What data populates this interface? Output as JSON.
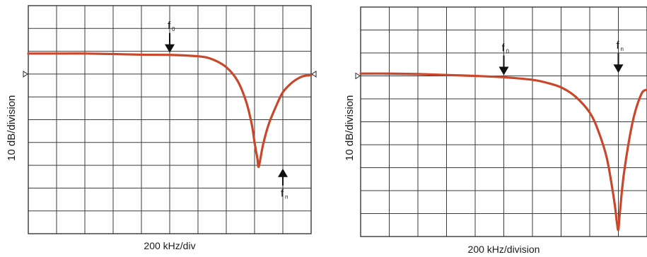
{
  "chart_data": [
    {
      "type": "line",
      "xlabel": "200 kHz/div",
      "ylabel": "10 dB/division",
      "x_divisions": 10,
      "y_divisions": 10,
      "xlim": [
        0,
        10
      ],
      "ylim": [
        -100,
        0
      ],
      "grid": true,
      "reference_markers": [
        "left",
        "right"
      ],
      "colors": {
        "trace": "#c9472b",
        "grid": "#3a3a3a"
      },
      "series": [
        {
          "x": [
            0,
            1,
            2,
            3,
            4,
            5,
            6,
            6.5,
            7,
            7.4,
            7.7,
            7.9,
            8.0,
            8.1,
            8.15,
            8.3,
            8.5,
            8.8,
            9.0,
            9.3,
            9.6,
            9.8,
            10
          ],
          "y": [
            -21,
            -21,
            -21,
            -21.2,
            -21.5,
            -21.6,
            -22.2,
            -23.5,
            -27,
            -33,
            -42,
            -52,
            -60,
            -67,
            -70.5,
            -61,
            -52,
            -43,
            -38,
            -34,
            -31.5,
            -30.7,
            -30.5
          ]
        }
      ],
      "markers": [
        {
          "symbol": "f",
          "sub": "0",
          "x": 5.0,
          "y": -21.6,
          "side": "above"
        },
        {
          "symbol": "f",
          "sub": "n",
          "x": 9.0,
          "y": -70.5,
          "side": "below"
        }
      ]
    },
    {
      "type": "line",
      "xlabel": "200 kHz/division",
      "ylabel": "10 dB/division",
      "x_divisions": 10,
      "y_divisions": 10,
      "xlim": [
        0,
        10
      ],
      "ylim": [
        -100,
        0
      ],
      "grid": true,
      "reference_markers": [
        "left"
      ],
      "colors": {
        "trace": "#c9472b",
        "grid": "#3a3a3a"
      },
      "series": [
        {
          "x": [
            0,
            1,
            2,
            3,
            4,
            5,
            6,
            6.5,
            7,
            7.5,
            8.0,
            8.3,
            8.6,
            8.85,
            8.95,
            9.0,
            9.05,
            9.2,
            9.5,
            9.8,
            10
          ],
          "y": [
            -29,
            -29,
            -29.2,
            -29.6,
            -30,
            -30.6,
            -31.7,
            -33,
            -35,
            -39,
            -46,
            -54,
            -66,
            -84,
            -94,
            -97,
            -90,
            -72,
            -50,
            -38,
            -36
          ]
        }
      ],
      "markers": [
        {
          "symbol": "f",
          "sub": "0",
          "x": 5.0,
          "y": -30.6,
          "side": "above"
        },
        {
          "symbol": "f",
          "sub": "n",
          "x": 9.0,
          "y": -29.6,
          "side": "above"
        }
      ]
    }
  ]
}
